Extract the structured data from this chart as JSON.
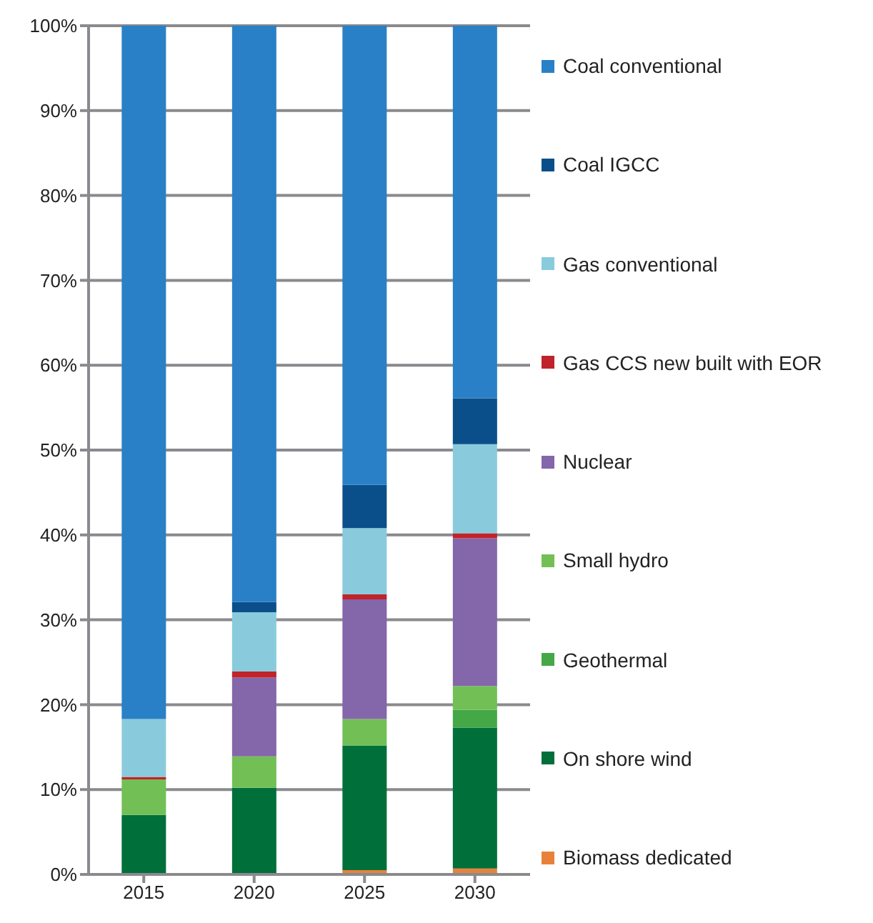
{
  "chart_data": {
    "type": "bar",
    "stacked": true,
    "categories": [
      "2015",
      "2020",
      "2025",
      "2030"
    ],
    "series": [
      {
        "name": "Biomass dedicated",
        "color": "#e8823a",
        "values": [
          0,
          0,
          0.5,
          0.7
        ]
      },
      {
        "name": "On shore wind",
        "color": "#006f3a",
        "values": [
          7.0,
          10.2,
          14.7,
          16.6
        ]
      },
      {
        "name": "Geothermal",
        "color": "#44a846",
        "values": [
          0,
          0,
          0,
          2.1
        ]
      },
      {
        "name": "Small hydro",
        "color": "#72bf56",
        "values": [
          4.2,
          3.7,
          3.1,
          2.8
        ]
      },
      {
        "name": "Nuclear",
        "color": "#8466ab",
        "values": [
          0,
          9.3,
          14.1,
          17.4
        ]
      },
      {
        "name": "Gas CCS new built with EOR",
        "color": "#c0232a",
        "values": [
          0.3,
          0.7,
          0.6,
          0.6
        ]
      },
      {
        "name": "Gas conventional",
        "color": "#89cbdc",
        "values": [
          6.8,
          7.0,
          7.8,
          10.5
        ]
      },
      {
        "name": "Coal IGCC",
        "color": "#0b4f8a",
        "values": [
          0,
          1.2,
          5.1,
          5.4
        ]
      },
      {
        "name": "Coal conventional",
        "color": "#2a80c6",
        "values": [
          81.7,
          67.9,
          54.1,
          43.9
        ]
      }
    ],
    "ylim": [
      0,
      100
    ],
    "yticks": [
      {
        "value": 0,
        "label": "0%"
      },
      {
        "value": 10,
        "label": "10%"
      },
      {
        "value": 20,
        "label": "20%"
      },
      {
        "value": 30,
        "label": "30%"
      },
      {
        "value": 40,
        "label": "40%"
      },
      {
        "value": 50,
        "label": "50%"
      },
      {
        "value": 60,
        "label": "60%"
      },
      {
        "value": 70,
        "label": "70%"
      },
      {
        "value": 80,
        "label": "80%"
      },
      {
        "value": 90,
        "label": "90%"
      },
      {
        "value": 100,
        "label": "100%"
      }
    ],
    "grid": "y",
    "legend": "right"
  }
}
